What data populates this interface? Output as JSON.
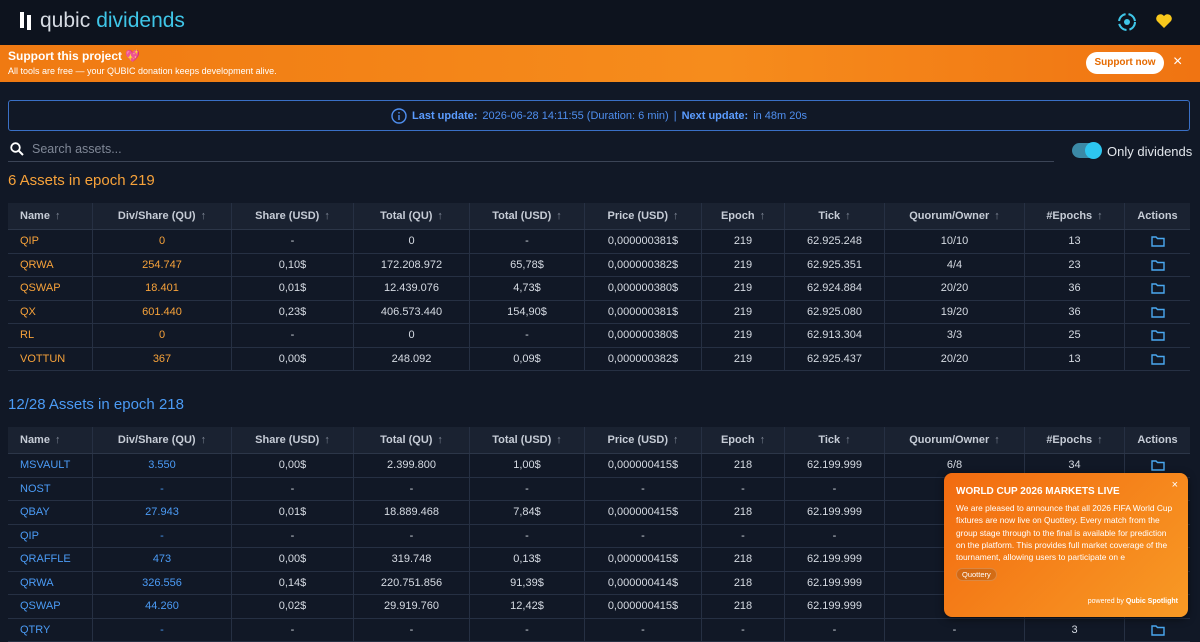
{
  "header": {
    "logo_a": "qubic",
    "logo_b": "dividends"
  },
  "banner": {
    "title": "Support this project 💖",
    "text": "All tools are free — your QUBIC donation keeps development alive.",
    "button": "Support now",
    "close": "×"
  },
  "update": {
    "last_label": "Last update:",
    "last_value": "2026-06-28 14:11:55 (Duration: 6 min)",
    "separator": "|",
    "next_label": "Next update:",
    "next_value": "in 48m 20s"
  },
  "search": {
    "placeholder": "Search assets...",
    "toggle_label": "Only dividends"
  },
  "sections": [
    {
      "title": "6 Assets in epoch 219",
      "columns": [
        "Name",
        "Div/Share (QU)",
        "Share (USD)",
        "Total (QU)",
        "Total (USD)",
        "Price (USD)",
        "Epoch",
        "Tick",
        "Quorum/Owner",
        "#Epochs",
        "Actions"
      ],
      "rows": [
        {
          "cells": [
            "QIP",
            "0",
            "-",
            "0",
            "-",
            "0,000000381$",
            "219",
            "62.925.248",
            "10/10",
            "13"
          ]
        },
        {
          "cells": [
            "QRWA",
            "254.747",
            "0,10$",
            "172.208.972",
            "65,78$",
            "0,000000382$",
            "219",
            "62.925.351",
            "4/4",
            "23"
          ]
        },
        {
          "cells": [
            "QSWAP",
            "18.401",
            "0,01$",
            "12.439.076",
            "4,73$",
            "0,000000380$",
            "219",
            "62.924.884",
            "20/20",
            "36"
          ]
        },
        {
          "cells": [
            "QX",
            "601.440",
            "0,23$",
            "406.573.440",
            "154,90$",
            "0,000000381$",
            "219",
            "62.925.080",
            "19/20",
            "36"
          ]
        },
        {
          "cells": [
            "RL",
            "0",
            "-",
            "0",
            "-",
            "0,000000380$",
            "219",
            "62.913.304",
            "3/3",
            "25"
          ]
        },
        {
          "cells": [
            "VOTTUN",
            "367",
            "0,00$",
            "248.092",
            "0,09$",
            "0,000000382$",
            "219",
            "62.925.437",
            "20/20",
            "13"
          ]
        }
      ]
    },
    {
      "title": "12/28 Assets in epoch 218",
      "columns": [
        "Name",
        "Div/Share (QU)",
        "Share (USD)",
        "Total (QU)",
        "Total (USD)",
        "Price (USD)",
        "Epoch",
        "Tick",
        "Quorum/Owner",
        "#Epochs",
        "Actions"
      ],
      "rows": [
        {
          "cells": [
            "MSVAULT",
            "3.550",
            "0,00$",
            "2.399.800",
            "1,00$",
            "0,000000415$",
            "218",
            "62.199.999",
            "6/8",
            "34"
          ]
        },
        {
          "cells": [
            "NOST",
            "-",
            "-",
            "-",
            "-",
            "-",
            "-",
            "-",
            null,
            null
          ]
        },
        {
          "cells": [
            "QBAY",
            "27.943",
            "0,01$",
            "18.889.468",
            "7,84$",
            "0,000000415$",
            "218",
            "62.199.999",
            null,
            null
          ]
        },
        {
          "cells": [
            "QIP",
            "-",
            "-",
            "-",
            "-",
            "-",
            "-",
            "-",
            null,
            null
          ]
        },
        {
          "cells": [
            "QRAFFLE",
            "473",
            "0,00$",
            "319.748",
            "0,13$",
            "0,000000415$",
            "218",
            "62.199.999",
            null,
            null
          ]
        },
        {
          "cells": [
            "QRWA",
            "326.556",
            "0,14$",
            "220.751.856",
            "91,39$",
            "0,000000414$",
            "218",
            "62.199.999",
            null,
            null
          ]
        },
        {
          "cells": [
            "QSWAP",
            "44.260",
            "0,02$",
            "29.919.760",
            "12,42$",
            "0,000000415$",
            "218",
            "62.199.999",
            null,
            null
          ]
        },
        {
          "cells": [
            "QTRY",
            "-",
            "-",
            "-",
            "-",
            "-",
            "-",
            "-",
            "-",
            "3"
          ]
        }
      ]
    }
  ],
  "popup": {
    "title": "WORLD CUP 2026 MARKETS LIVE",
    "body": "We are pleased to announce that all 2026 FIFA World Cup fixtures are now live on Quottery. Every match from the group stage through to the final is available for prediction on the platform. This provides full market coverage of the tournament, allowing users to participate on e",
    "tag": "Quottery",
    "powered": "powered by",
    "brand": "Qubic Spotlight",
    "close": "×"
  }
}
